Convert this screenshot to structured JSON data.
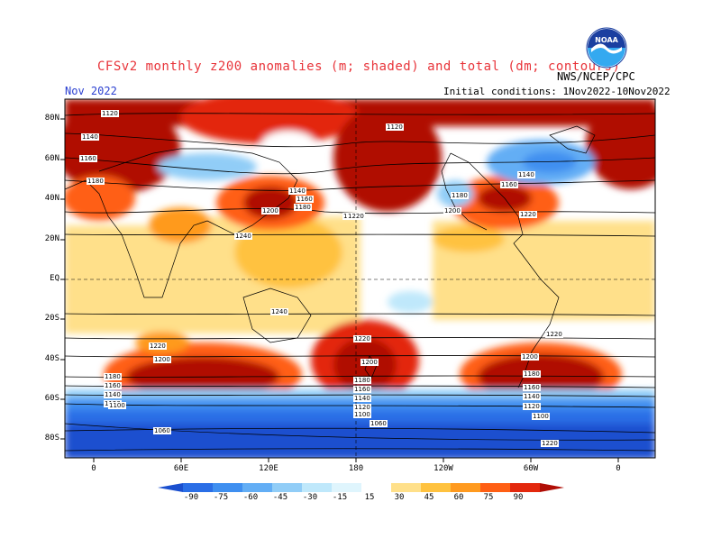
{
  "header": {
    "title": "CFSv2 monthly z200 anomalies (m; shaded) and total (dm; contours)",
    "agency": "NWS/NCEP/CPC",
    "month": "Nov 2022",
    "initial_conditions": "Initial conditions: 1Nov2022-10Nov2022",
    "logo_text": "NOAA"
  },
  "map": {
    "lat_labels": [
      "80N",
      "60N",
      "40N",
      "20N",
      "EQ",
      "20S",
      "40S",
      "60S",
      "80S"
    ],
    "lon_labels": [
      "0",
      "60E",
      "120E",
      "180",
      "120W",
      "60W",
      "0"
    ],
    "contour_labels": [
      "1120",
      "1140",
      "1160",
      "1180",
      "1200",
      "1140",
      "1160",
      "1180",
      "1200",
      "1240",
      "1120",
      "1200",
      "1220",
      "1140",
      "1160",
      "1180",
      "1200",
      "1220",
      "1220",
      "1240",
      "1220",
      "1200",
      "1180",
      "1160",
      "1140",
      "1120",
      "1100",
      "1220",
      "1200",
      "1180",
      "1160",
      "1140",
      "1120",
      "1100",
      "1060",
      "1200",
      "1180",
      "1160",
      "1140",
      "1120",
      "1100",
      "1060",
      "1220",
      "1220"
    ]
  },
  "colorbar": {
    "ticks": [
      "-90",
      "-75",
      "-60",
      "-45",
      "-30",
      "-15",
      "15",
      "30",
      "45",
      "60",
      "75",
      "90"
    ],
    "colors": [
      "#1a4fcf",
      "#2a6ee6",
      "#3f8ff0",
      "#63aef5",
      "#91cdf7",
      "#bfe8fb",
      "#ffffff",
      "#ffe08a",
      "#ffc23f",
      "#ff9a1f",
      "#ff5f14",
      "#e3280d",
      "#b00e06"
    ]
  }
}
